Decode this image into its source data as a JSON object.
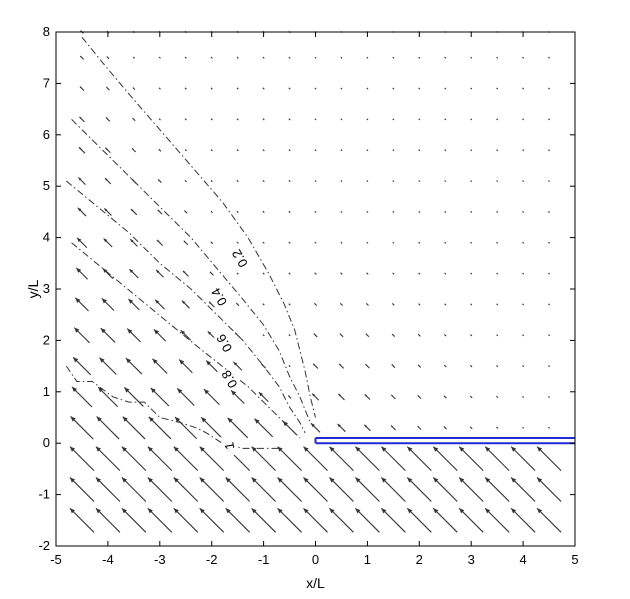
{
  "chart_data": {
    "type": "quiver-contour",
    "title": "",
    "xlabel": "x/L",
    "ylabel": "y/L",
    "xlim": [
      -5,
      5
    ],
    "ylim": [
      -2,
      8
    ],
    "xticks": [
      "-5",
      "-4",
      "-3",
      "-2",
      "-1",
      "0",
      "1",
      "2",
      "3",
      "4",
      "5"
    ],
    "yticks": [
      "-2",
      "-1",
      "0",
      "1",
      "2",
      "3",
      "4",
      "5",
      "6",
      "7",
      "8"
    ],
    "grid": false,
    "boundary": {
      "description": "double blue line (plate) from x=0 to x=5 at y=0",
      "x": [
        0,
        5
      ],
      "y": [
        0,
        0.1
      ],
      "color": "#1f2ad6"
    },
    "vector_field": {
      "color": "#333333",
      "x": [
        -4.5,
        -4,
        -3.5,
        -3,
        -2.5,
        -2,
        -1.5,
        -1,
        -0.5,
        0,
        0.5,
        1,
        1.5,
        2,
        2.5,
        3,
        3.5,
        4,
        4.5
      ],
      "y": [
        -1.5,
        -0.9,
        -0.3,
        0.3,
        0.9,
        1.5,
        2.1,
        2.7,
        3.3,
        3.9,
        4.5,
        5.1,
        5.7,
        6.3,
        6.9,
        7.5,
        8.0
      ],
      "direction": "up-left (toward -x, +y)"
    },
    "contours": [
      {
        "level": "0.2",
        "x": [
          -4.5,
          -4.1,
          -3.6,
          -3.0,
          -2.4,
          -1.8,
          -1.3,
          -0.9,
          -0.6,
          -0.4,
          -0.3,
          -0.2,
          -0.1,
          0.0
        ],
        "y": [
          7.9,
          7.4,
          6.8,
          6.1,
          5.4,
          4.7,
          4.0,
          3.3,
          2.7,
          2.2,
          1.8,
          1.4,
          0.9,
          0.5
        ]
      },
      {
        "level": "0.4",
        "x": [
          -4.7,
          -4.2,
          -3.6,
          -3.0,
          -2.4,
          -1.9,
          -1.4,
          -1.0,
          -0.7,
          -0.5,
          -0.3,
          -0.1
        ],
        "y": [
          6.3,
          5.8,
          5.2,
          4.6,
          4.0,
          3.4,
          2.8,
          2.3,
          1.8,
          1.3,
          0.9,
          0.4
        ]
      },
      {
        "level": "0.6",
        "x": [
          -4.8,
          -4.2,
          -3.6,
          -3.0,
          -2.4,
          -1.9,
          -1.4,
          -1.0,
          -0.7,
          -0.5,
          -0.3,
          -0.2
        ],
        "y": [
          5.1,
          4.6,
          4.1,
          3.5,
          3.0,
          2.5,
          2.0,
          1.5,
          1.1,
          0.7,
          0.4,
          0.2
        ]
      },
      {
        "level": "0.8",
        "x": [
          -4.7,
          -4.1,
          -3.5,
          -2.9,
          -2.3,
          -1.8,
          -1.3,
          -0.9,
          -0.6,
          -0.4,
          -0.3
        ],
        "y": [
          3.9,
          3.4,
          2.9,
          2.4,
          1.9,
          1.5,
          1.1,
          0.7,
          0.4,
          0.2,
          0.1
        ]
      },
      {
        "level": "1",
        "x": [
          -4.8,
          -4.6,
          -4.3,
          -3.9,
          -3.6,
          -3.3,
          -3.0,
          -2.6,
          -2.3,
          -2.1,
          -1.8,
          -1.4,
          -1.0,
          -0.7
        ],
        "y": [
          1.5,
          1.2,
          1.2,
          0.9,
          0.8,
          0.8,
          0.5,
          0.4,
          0.3,
          0.2,
          0.0,
          -0.1,
          -0.1,
          -0.1
        ]
      }
    ],
    "contour_labels": [
      {
        "text": "0.2",
        "x": -1.45,
        "y": 3.6,
        "angle": -120
      },
      {
        "text": "0.4",
        "x": -1.85,
        "y": 2.85,
        "angle": -120
      },
      {
        "text": "0.6",
        "x": -1.75,
        "y": 1.95,
        "angle": -120
      },
      {
        "text": "0.8",
        "x": -1.65,
        "y": 1.25,
        "angle": -120
      },
      {
        "text": "1",
        "x": -1.65,
        "y": -0.05,
        "angle": -100
      }
    ]
  }
}
